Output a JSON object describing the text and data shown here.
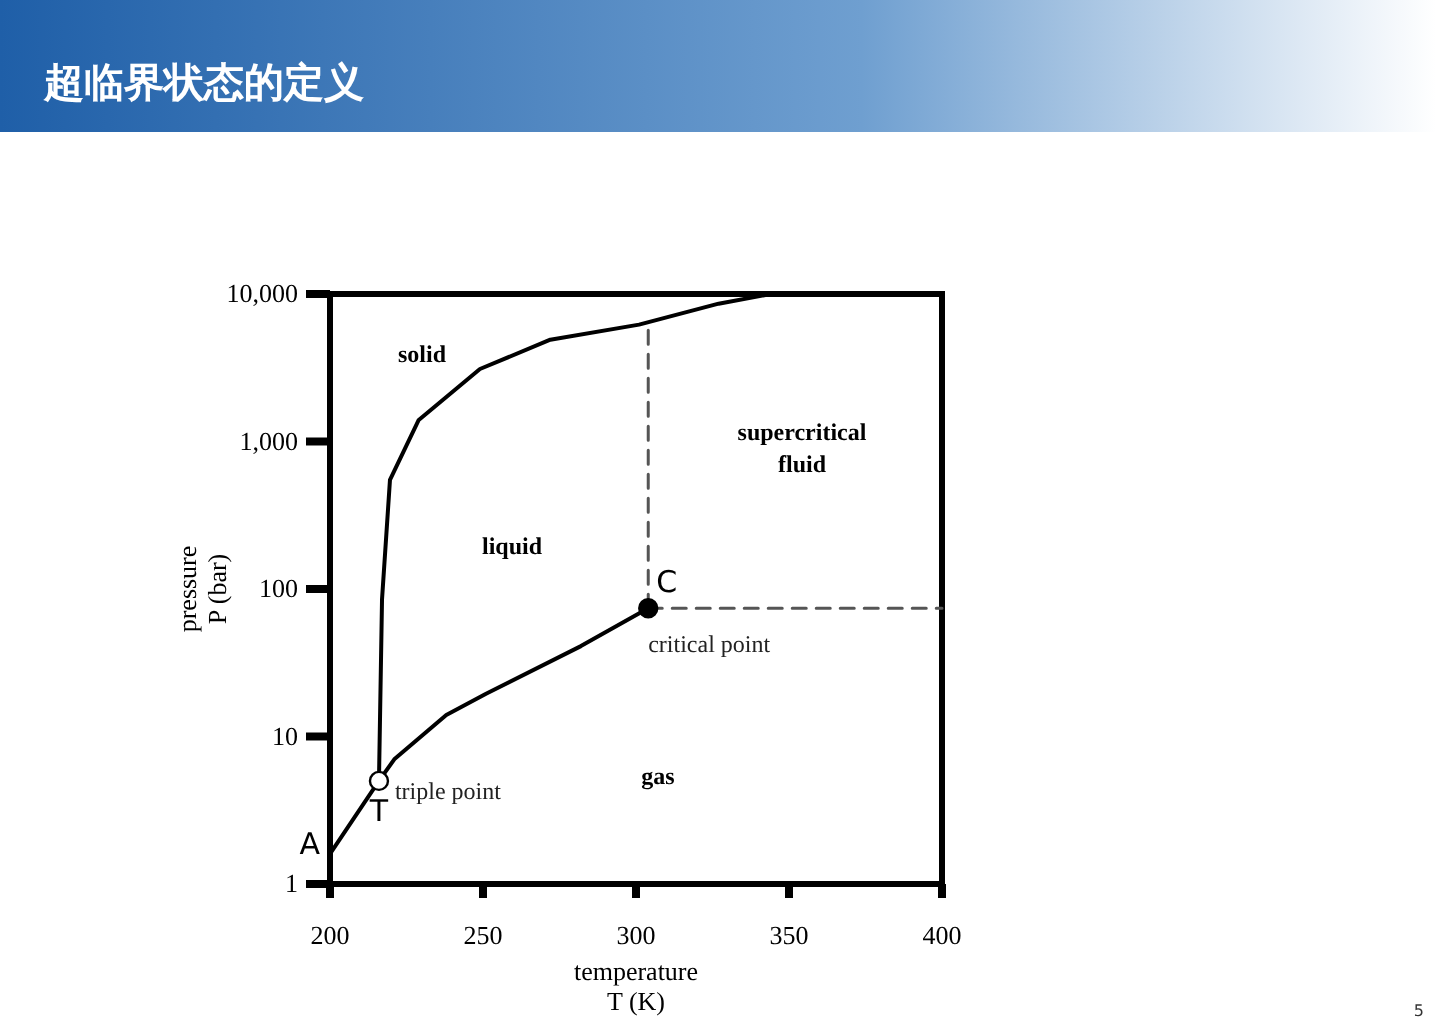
{
  "chart_data": {
    "type": "line",
    "title": "超临界状态的定义",
    "xlabel": "temperature\nT (K)",
    "ylabel": "pressure\nP (bar)",
    "xlim": [
      200,
      400
    ],
    "xticks": [
      200,
      250,
      300,
      350,
      400
    ],
    "log": true,
    "ylim": [
      1,
      10000
    ],
    "yticks": [
      1,
      10,
      100,
      {
        "value": 1000,
        "label": "1,000"
      },
      {
        "value": 10000,
        "label": "10,000"
      }
    ],
    "grid": false,
    "marker": "none",
    "line_style": "solid",
    "series": [
      {
        "color": "#000000",
        "x": [
          200,
          216
        ],
        "values": [
          1.6,
          5
        ]
      },
      {
        "color": "#000000",
        "x": [
          216,
          217,
          219.6,
          229,
          249,
          272,
          301,
          327,
          344
        ],
        "values": [
          5,
          85,
          550,
          1400,
          3100,
          4900,
          6200,
          8600,
          10000
        ]
      },
      {
        "color": "#000000",
        "x": [
          216,
          221,
          238,
          251,
          282,
          304
        ],
        "values": [
          5,
          7,
          14,
          19.5,
          41,
          74
        ]
      },
      {
        "color": "#555555",
        "line_style": "dashed",
        "x": [
          304,
          304
        ],
        "values": [
          74,
          6300
        ]
      },
      {
        "color": "#555555",
        "line_style": "dashed",
        "x": [
          304,
          400
        ],
        "values": [
          74,
          74
        ]
      },
      {
        "type": "scatter",
        "color": "#ffffff",
        "marker": "circle",
        "x": [
          216
        ],
        "values": [
          5
        ]
      },
      {
        "type": "scatter",
        "color": "#000000",
        "marker": "circle",
        "x": [
          304
        ],
        "values": [
          74
        ]
      }
    ],
    "annotations": [
      {
        "text": "triple point",
        "x": 216,
        "y": 5
      },
      {
        "text": "T",
        "x": 216,
        "y": 5
      },
      {
        "text": "critical point",
        "x": 304,
        "y": 74
      },
      {
        "text": "C",
        "x": 304,
        "y": 74
      },
      {
        "text": "A",
        "x": 200,
        "y": 1.6
      },
      "solid",
      "liquid",
      "supercritical fluid",
      "gas",
      "5"
    ]
  }
}
